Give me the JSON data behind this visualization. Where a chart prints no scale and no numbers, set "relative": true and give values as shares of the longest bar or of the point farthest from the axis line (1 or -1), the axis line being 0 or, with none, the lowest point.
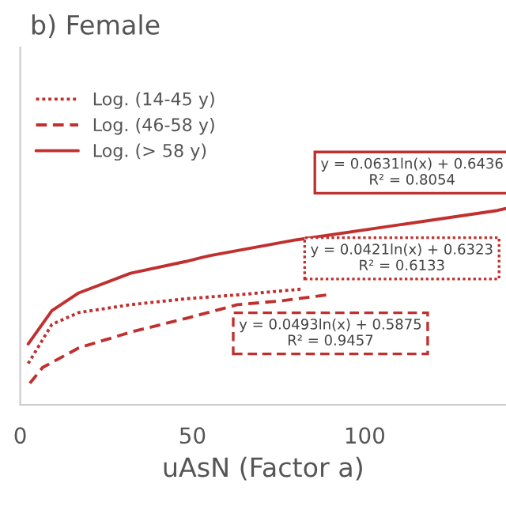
{
  "chart_data": {
    "type": "line",
    "title": "b) Female",
    "xlabel": "uAsN (Factor a)",
    "relative": true,
    "xlim": [
      0,
      141
    ],
    "xticks": [
      0,
      50,
      100
    ],
    "tick_labels": "x",
    "grid": false,
    "legend": "top left",
    "marker": "none",
    "series": [
      {
        "name": "Log. (14-45 y)",
        "color": "#c0302e",
        "line_style": "dotted",
        "x": [
          2.3,
          9.2,
          17,
          32,
          48,
          63,
          82
        ],
        "values": [
          0.21,
          0.41,
          0.47,
          0.51,
          0.54,
          0.56,
          0.59
        ]
      },
      {
        "name": "Log. (46-58 y)",
        "color": "#c0302e",
        "line_style": "dashed",
        "x": [
          2.8,
          6.5,
          17,
          32,
          48,
          63,
          76,
          89
        ],
        "values": [
          0.11,
          0.19,
          0.29,
          0.37,
          0.44,
          0.51,
          0.53,
          0.56
        ]
      },
      {
        "name": "Log. (> 58 y)",
        "color": "#c0302e",
        "line_style": "solid",
        "x": [
          2.3,
          9.2,
          17,
          32,
          48,
          55,
          80,
          101,
          138.5,
          141
        ],
        "values": [
          0.31,
          0.48,
          0.57,
          0.67,
          0.73,
          0.76,
          0.84,
          null,
          0.99,
          1
        ]
      }
    ],
    "annotations": [
      "y = 0.0631ln(x) + 0.6436\nR² = 0.8054",
      "y = 0.0421ln(x) + 0.6323\nR² = 0.6133",
      "y = 0.0493ln(x) + 0.5875\nR² = 0.9457"
    ]
  }
}
